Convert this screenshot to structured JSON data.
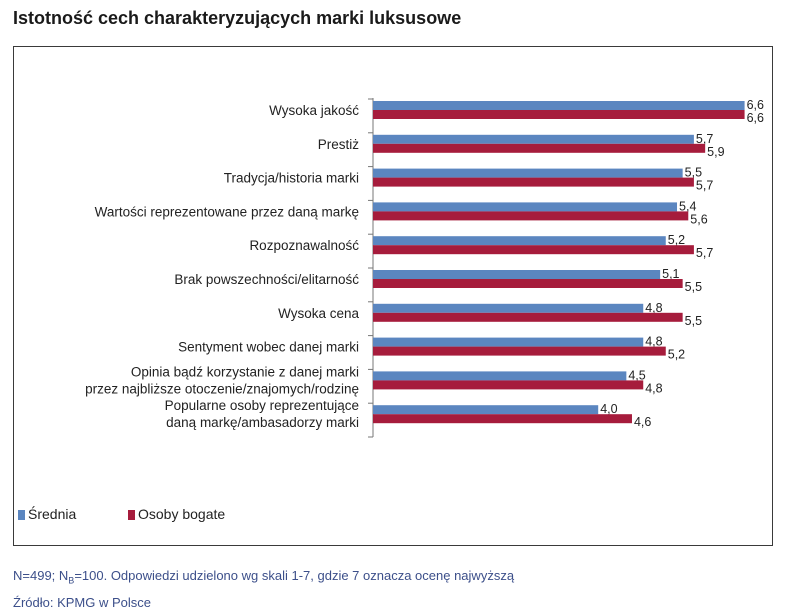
{
  "title": "Istotność cech charakteryzujących marki luksusowe",
  "footnote": {
    "line1_pre": "N=499; N",
    "line1_sub": "B",
    "line1_post": "=100. Odpowiedzi udzielono wg skali 1-7, gdzie 7 oznacza ocenę najwyższą",
    "line2": "Źródło: KPMG w Polsce"
  },
  "chart_data": {
    "type": "bar",
    "orientation": "horizontal",
    "categories": [
      [
        "Wysoka jakość"
      ],
      [
        "Prestiż"
      ],
      [
        "Tradycja/historia marki"
      ],
      [
        "Wartości reprezentowane przez daną markę"
      ],
      [
        "Rozpoznawalność"
      ],
      [
        "Brak powszechności/elitarność"
      ],
      [
        "Wysoka cena"
      ],
      [
        "Sentyment wobec danej marki"
      ],
      [
        "Opinia bądź korzystanie z danej marki",
        "przez najbliższe otoczenie/znajomych/rodzinę"
      ],
      [
        "Popularne osoby reprezentujące",
        "daną markę/ambasadorzy marki"
      ]
    ],
    "series": [
      {
        "name": "Średnia",
        "color": "#5b86c0",
        "values": [
          6.6,
          5.7,
          5.5,
          5.4,
          5.2,
          5.1,
          4.8,
          4.8,
          4.5,
          4.0
        ],
        "labels": [
          "6,6",
          "5,7",
          "5,5",
          "5,4",
          "5,2",
          "5,1",
          "4,8",
          "4,8",
          "4,5",
          "4,0"
        ]
      },
      {
        "name": "Osoby bogate",
        "color": "#a61c3c",
        "values": [
          6.6,
          5.9,
          5.7,
          5.6,
          5.7,
          5.5,
          5.5,
          5.2,
          4.8,
          4.6
        ],
        "labels": [
          "6,6",
          "5,9",
          "5,7",
          "5,6",
          "5,7",
          "5,5",
          "5,5",
          "5,2",
          "4,8",
          "4,6"
        ]
      }
    ],
    "legend_position": "bottom-left",
    "grid": false
  }
}
